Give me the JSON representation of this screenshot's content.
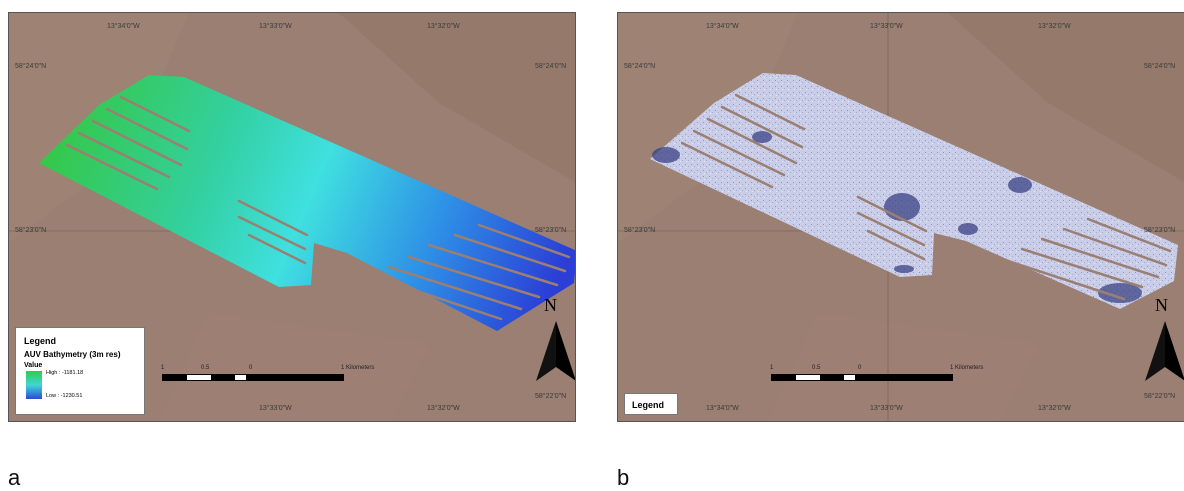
{
  "panels": [
    {
      "id": "a",
      "label": "a",
      "graticule": {
        "top": [
          "13°34'0\"W",
          "13°33'0\"W",
          "13°32'0\"W"
        ],
        "bottom": [
          "13°33'0\"W",
          "13°32'0\"W"
        ],
        "left": [
          "58°24'0\"N",
          "58°23'0\"N"
        ],
        "right": [
          "58°24'0\"N",
          "58°23'0\"N",
          "58°22'0\"N"
        ]
      },
      "legend": {
        "title": "Legend",
        "layer": "AUV Bathymetry (3m res)",
        "value_label": "Value",
        "high": "High : -1181.18",
        "low": "Low : -1230.51",
        "colors": [
          "#2fcc4a",
          "#3fd6d6",
          "#2a4ad8"
        ]
      },
      "scale_bar": {
        "ticks": [
          "1",
          "0.5",
          "0",
          "1 Kilometers"
        ]
      },
      "north": "N"
    },
    {
      "id": "b",
      "label": "b",
      "graticule": {
        "top": [
          "13°34'0\"W",
          "13°33'0\"W",
          "13°32'0\"W"
        ],
        "bottom": [
          "13°34'0\"W",
          "13°33'0\"W",
          "13°32'0\"W"
        ],
        "left": [
          "58°24'0\"N",
          "58°23'0\"N"
        ],
        "right": [
          "58°24'0\"N",
          "58°23'0\"N",
          "58°22'0\"N"
        ]
      },
      "legend": {
        "title": "Legend"
      },
      "scale_bar": {
        "ticks": [
          "1",
          "0.5",
          "0",
          "1 Kilometers"
        ]
      },
      "north": "N"
    }
  ]
}
